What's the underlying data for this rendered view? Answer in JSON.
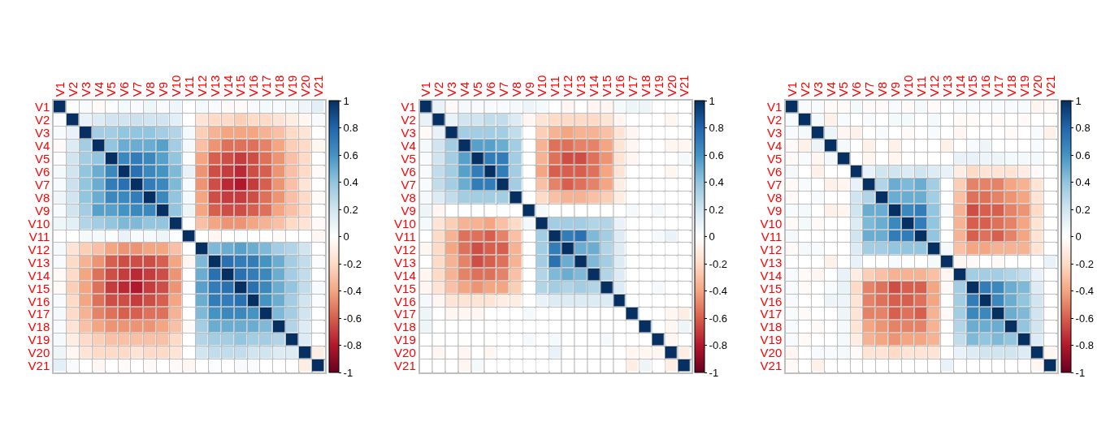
{
  "chart_data": [
    {
      "type": "heatmap",
      "categories": [
        "V1",
        "V2",
        "V3",
        "V4",
        "V5",
        "V6",
        "V7",
        "V8",
        "V9",
        "V10",
        "V11",
        "V12",
        "V13",
        "V14",
        "V15",
        "V16",
        "V17",
        "V18",
        "V19",
        "V20",
        "V21"
      ],
      "y_categories": [
        "V1",
        "V2",
        "V3",
        "V4",
        "V5",
        "V6",
        "V7",
        "V8",
        "V9",
        "V10",
        "V11",
        "V12",
        "V13",
        "V14",
        "V15",
        "V16",
        "V17",
        "V18",
        "V19",
        "V20",
        "V21"
      ],
      "cells": [
        [
          1,
          0.02,
          0.03,
          -0.03,
          0.02,
          0.05,
          0.03,
          0.07,
          0.03,
          0.07,
          0,
          0.05,
          0.03,
          -0.03,
          -0.03,
          0.03,
          0.05,
          0.03,
          0.05,
          0.08,
          0.12
        ],
        [
          0.02,
          1,
          0.1,
          0.15,
          0.2,
          0.2,
          0.22,
          0.2,
          0.2,
          0.12,
          0,
          -0.15,
          -0.2,
          -0.2,
          -0.25,
          -0.2,
          -0.2,
          -0.15,
          -0.1,
          -0.05,
          0.03
        ],
        [
          0.03,
          0.1,
          1,
          0.35,
          0.35,
          0.4,
          0.4,
          0.4,
          0.35,
          0.3,
          0.05,
          -0.25,
          -0.35,
          -0.4,
          -0.4,
          -0.4,
          -0.35,
          -0.3,
          -0.2,
          -0.15,
          0
        ],
        [
          -0.03,
          0.15,
          0.35,
          1,
          0.4,
          0.5,
          0.5,
          0.5,
          0.55,
          0.35,
          0.05,
          -0.3,
          -0.45,
          -0.55,
          -0.55,
          -0.55,
          -0.5,
          -0.4,
          -0.25,
          -0.2,
          -0.05
        ],
        [
          0.02,
          0.2,
          0.35,
          0.4,
          1,
          0.65,
          0.7,
          0.65,
          0.55,
          0.4,
          0.02,
          -0.4,
          -0.6,
          -0.65,
          -0.7,
          -0.65,
          -0.55,
          -0.45,
          -0.3,
          -0.2,
          0
        ],
        [
          0.05,
          0.2,
          0.4,
          0.5,
          0.65,
          1,
          0.75,
          0.65,
          0.6,
          0.45,
          0.1,
          -0.45,
          -0.65,
          -0.7,
          -0.75,
          -0.65,
          -0.6,
          -0.45,
          -0.3,
          -0.2,
          -0.03
        ],
        [
          0.03,
          0.22,
          0.4,
          0.5,
          0.7,
          0.75,
          1,
          0.7,
          0.65,
          0.45,
          0.03,
          -0.45,
          -0.65,
          -0.75,
          -0.8,
          -0.7,
          -0.6,
          -0.45,
          -0.3,
          -0.15,
          0
        ],
        [
          0.07,
          0.2,
          0.4,
          0.5,
          0.65,
          0.65,
          0.7,
          1,
          0.65,
          0.4,
          0.05,
          -0.4,
          -0.65,
          -0.7,
          -0.7,
          -0.65,
          -0.55,
          -0.45,
          -0.3,
          -0.2,
          -0.03
        ],
        [
          0.03,
          0.2,
          0.35,
          0.55,
          0.55,
          0.6,
          0.65,
          0.65,
          1,
          0.4,
          0.08,
          -0.4,
          -0.6,
          -0.65,
          -0.65,
          -0.6,
          -0.55,
          -0.4,
          -0.3,
          -0.2,
          0
        ],
        [
          0.07,
          0.12,
          0.3,
          0.35,
          0.4,
          0.45,
          0.45,
          0.4,
          0.4,
          1,
          0.02,
          -0.3,
          -0.4,
          -0.45,
          -0.45,
          -0.4,
          -0.35,
          -0.3,
          -0.2,
          -0.15,
          -0.03
        ],
        [
          0,
          0,
          0.05,
          0.05,
          0.02,
          0.1,
          0.03,
          0.05,
          0.08,
          0.02,
          1,
          0,
          -0.05,
          0,
          0.02,
          0,
          0,
          -0.03,
          0,
          0,
          -0.05
        ],
        [
          0.05,
          -0.15,
          -0.25,
          -0.3,
          -0.4,
          -0.45,
          -0.45,
          -0.4,
          -0.4,
          -0.3,
          0,
          1,
          0.45,
          0.5,
          0.55,
          0.5,
          0.45,
          0.35,
          0.3,
          0.2,
          0
        ],
        [
          0.03,
          -0.2,
          -0.35,
          -0.45,
          -0.6,
          -0.65,
          -0.65,
          -0.65,
          -0.6,
          -0.4,
          -0.05,
          0.45,
          1,
          0.75,
          0.7,
          0.7,
          0.6,
          0.5,
          0.35,
          0.25,
          0.02
        ],
        [
          -0.03,
          -0.2,
          -0.4,
          -0.55,
          -0.65,
          -0.7,
          -0.75,
          -0.7,
          -0.65,
          -0.45,
          0,
          0.5,
          0.75,
          1,
          0.75,
          0.7,
          0.65,
          0.5,
          0.35,
          0.25,
          0
        ],
        [
          -0.03,
          -0.25,
          -0.4,
          -0.55,
          -0.7,
          -0.75,
          -0.8,
          -0.7,
          -0.65,
          -0.45,
          0.02,
          0.55,
          0.7,
          0.75,
          1,
          0.75,
          0.65,
          0.5,
          0.4,
          0.25,
          0.03
        ],
        [
          0.03,
          -0.2,
          -0.4,
          -0.55,
          -0.65,
          -0.65,
          -0.7,
          -0.65,
          -0.6,
          -0.4,
          0,
          0.5,
          0.7,
          0.7,
          0.75,
          1,
          0.6,
          0.5,
          0.35,
          0.2,
          0.02
        ],
        [
          0.05,
          -0.2,
          -0.35,
          -0.5,
          -0.55,
          -0.6,
          -0.6,
          -0.55,
          -0.55,
          -0.35,
          0,
          0.45,
          0.6,
          0.65,
          0.65,
          0.6,
          1,
          0.45,
          0.35,
          0.2,
          0
        ],
        [
          0.03,
          -0.15,
          -0.3,
          -0.4,
          -0.45,
          -0.45,
          -0.45,
          -0.45,
          -0.4,
          -0.3,
          -0.03,
          0.35,
          0.5,
          0.5,
          0.5,
          0.5,
          0.45,
          1,
          0.3,
          0.15,
          0
        ],
        [
          0.05,
          -0.1,
          -0.2,
          -0.25,
          -0.3,
          -0.3,
          -0.3,
          -0.3,
          -0.3,
          -0.2,
          0,
          0.3,
          0.35,
          0.35,
          0.4,
          0.35,
          0.35,
          0.3,
          1,
          0.15,
          0
        ],
        [
          0.08,
          -0.05,
          -0.15,
          -0.2,
          -0.2,
          -0.2,
          -0.15,
          -0.2,
          -0.2,
          -0.15,
          0,
          0.2,
          0.25,
          0.25,
          0.25,
          0.2,
          0.2,
          0.15,
          0.15,
          1,
          -0.1
        ],
        [
          0.12,
          0.03,
          0,
          -0.05,
          0,
          -0.03,
          0,
          -0.03,
          0,
          -0.03,
          -0.05,
          0,
          0.02,
          0,
          0.03,
          0.02,
          0,
          0,
          0,
          -0.1,
          1
        ]
      ],
      "clim": [
        -1,
        1
      ],
      "cticks": [
        -1,
        -0.8,
        -0.6,
        -0.4,
        -0.2,
        0,
        0.2,
        0.4,
        0.6,
        0.8,
        1
      ],
      "grid": true
    },
    {
      "type": "heatmap",
      "categories": [
        "V1",
        "V2",
        "V3",
        "V4",
        "V5",
        "V6",
        "V7",
        "V8",
        "V9",
        "V10",
        "V11",
        "V12",
        "V13",
        "V14",
        "V15",
        "V16",
        "V17",
        "V18",
        "V19",
        "V20",
        "V21"
      ],
      "y_categories": [
        "V1",
        "V2",
        "V3",
        "V4",
        "V5",
        "V6",
        "V7",
        "V8",
        "V9",
        "V10",
        "V11",
        "V12",
        "V13",
        "V14",
        "V15",
        "V16",
        "V17",
        "V18",
        "V19",
        "V20",
        "V21"
      ],
      "cells": [
        [
          1,
          0.1,
          -0.03,
          0.05,
          0.03,
          0.03,
          0.03,
          0.05,
          0.08,
          0.05,
          0,
          -0.05,
          0,
          -0.05,
          -0.05,
          0.05,
          0.08,
          0.08,
          0,
          0,
          0
        ],
        [
          0.1,
          1,
          0.1,
          0.2,
          0.2,
          0.25,
          0.25,
          0.15,
          -0.05,
          -0.15,
          -0.2,
          -0.2,
          -0.2,
          -0.2,
          -0.15,
          -0.05,
          0,
          0,
          0,
          -0.05,
          0
        ],
        [
          -0.03,
          0.1,
          1,
          0.35,
          0.35,
          0.35,
          0.35,
          0.25,
          0,
          -0.25,
          -0.35,
          -0.4,
          -0.35,
          -0.35,
          -0.3,
          -0.15,
          -0.05,
          0,
          0,
          0,
          0
        ],
        [
          0.05,
          0.2,
          0.35,
          1,
          0.55,
          0.55,
          0.5,
          0.35,
          0,
          -0.35,
          -0.55,
          -0.55,
          -0.5,
          -0.5,
          -0.4,
          -0.15,
          -0.05,
          0,
          0,
          -0.05,
          -0.05
        ],
        [
          0.03,
          0.2,
          0.35,
          0.55,
          1,
          0.7,
          0.7,
          0.35,
          0,
          -0.35,
          -0.55,
          -0.65,
          -0.65,
          -0.55,
          -0.45,
          -0.15,
          -0.05,
          0,
          0,
          0,
          0.05
        ],
        [
          0.03,
          0.25,
          0.35,
          0.55,
          0.7,
          1,
          0.7,
          0.35,
          0,
          -0.4,
          -0.6,
          -0.6,
          -0.6,
          -0.55,
          -0.4,
          -0.15,
          0,
          0,
          0,
          -0.05,
          0
        ],
        [
          0.03,
          0.25,
          0.35,
          0.5,
          0.7,
          0.7,
          1,
          0.35,
          0,
          -0.3,
          -0.5,
          -0.6,
          -0.55,
          -0.5,
          -0.4,
          -0.1,
          0,
          0,
          0,
          0,
          0
        ],
        [
          0.05,
          0.15,
          0.25,
          0.35,
          0.35,
          0.35,
          0.35,
          1,
          0,
          -0.2,
          -0.3,
          -0.35,
          -0.35,
          -0.3,
          -0.25,
          -0.1,
          0,
          0,
          0,
          0,
          0
        ],
        [
          0.08,
          -0.05,
          0,
          0,
          0,
          0,
          0,
          0,
          1,
          0.05,
          0,
          0,
          0,
          0,
          0,
          0,
          0.05,
          0,
          0.05,
          0,
          0
        ],
        [
          0.05,
          -0.15,
          -0.25,
          -0.35,
          -0.35,
          -0.4,
          -0.3,
          -0.2,
          0.05,
          1,
          0.35,
          0.35,
          0.35,
          0.3,
          0.3,
          0.1,
          0,
          0,
          0,
          0,
          0
        ],
        [
          0,
          -0.2,
          -0.35,
          -0.55,
          -0.55,
          -0.6,
          -0.5,
          -0.3,
          0,
          0.35,
          1,
          0.7,
          0.75,
          0.45,
          0.35,
          0.15,
          0,
          0,
          0.05,
          0.1,
          0
        ],
        [
          -0.05,
          -0.2,
          -0.4,
          -0.55,
          -0.65,
          -0.6,
          -0.6,
          -0.35,
          0,
          0.35,
          0.7,
          1,
          0.5,
          0.5,
          0.3,
          0.15,
          0,
          0,
          0,
          0,
          0
        ],
        [
          0,
          -0.2,
          -0.35,
          -0.5,
          -0.65,
          -0.6,
          -0.55,
          -0.35,
          0,
          0.35,
          0.75,
          0.5,
          1,
          0.45,
          0.35,
          0.15,
          0,
          0,
          0,
          0,
          0
        ],
        [
          -0.05,
          -0.2,
          -0.35,
          -0.5,
          -0.55,
          -0.55,
          -0.5,
          -0.3,
          0,
          0.3,
          0.45,
          0.5,
          0.45,
          1,
          0.3,
          0.15,
          0,
          0,
          0,
          0,
          0
        ],
        [
          -0.05,
          -0.15,
          -0.3,
          -0.4,
          -0.45,
          -0.4,
          -0.4,
          -0.25,
          0,
          0.3,
          0.35,
          0.3,
          0.35,
          0.3,
          1,
          0.15,
          0,
          0,
          0.05,
          0,
          0
        ],
        [
          0.05,
          -0.05,
          -0.15,
          -0.15,
          -0.15,
          -0.15,
          -0.1,
          -0.1,
          0,
          0.1,
          0.15,
          0.15,
          0.15,
          0.15,
          0.15,
          1,
          0,
          0,
          0,
          0,
          0
        ],
        [
          0.08,
          0,
          -0.05,
          -0.05,
          -0.05,
          0,
          0,
          0,
          0.05,
          0,
          0,
          0,
          0,
          0,
          0,
          0,
          1,
          0,
          0,
          -0.05,
          -0.1
        ],
        [
          0.08,
          0,
          0,
          0,
          0,
          0,
          0,
          0,
          0,
          0,
          0,
          0,
          0,
          0,
          0,
          0,
          0,
          1,
          0,
          -0.05,
          0.08
        ],
        [
          0,
          0,
          0,
          0,
          0,
          0,
          0,
          0,
          0.05,
          0,
          0.05,
          0,
          0,
          0,
          0.05,
          0,
          0,
          0,
          1,
          -0.05,
          0
        ],
        [
          0,
          -0.05,
          0,
          -0.05,
          0,
          -0.05,
          0,
          0,
          0,
          0,
          0.1,
          0,
          0,
          0,
          0,
          0,
          -0.05,
          -0.05,
          -0.05,
          1,
          -0.1
        ],
        [
          0,
          0,
          0,
          -0.05,
          0.05,
          0,
          0,
          0,
          0,
          0,
          0,
          0,
          0,
          0,
          0,
          0,
          -0.1,
          0.08,
          0,
          -0.1,
          1
        ]
      ],
      "clim": [
        -1,
        1
      ],
      "cticks": [
        -1,
        -0.8,
        -0.6,
        -0.4,
        -0.2,
        0,
        0.2,
        0.4,
        0.6,
        0.8,
        1
      ],
      "grid": true
    },
    {
      "type": "heatmap",
      "categories": [
        "V1",
        "V2",
        "V3",
        "V4",
        "V5",
        "V6",
        "V7",
        "V8",
        "V9",
        "V10",
        "V11",
        "V12",
        "V13",
        "V14",
        "V15",
        "V16",
        "V17",
        "V18",
        "V19",
        "V20",
        "V21"
      ],
      "y_categories": [
        "V1",
        "V2",
        "V3",
        "V4",
        "V5",
        "V6",
        "V7",
        "V8",
        "V9",
        "V10",
        "V11",
        "V12",
        "V13",
        "V14",
        "V15",
        "V16",
        "V17",
        "V18",
        "V19",
        "V20",
        "V21"
      ],
      "cells": [
        [
          1,
          0.03,
          0.03,
          -0.03,
          -0.03,
          0.05,
          -0.03,
          -0.03,
          0.03,
          -0.03,
          0.05,
          -0.03,
          0,
          0.03,
          0.03,
          0.03,
          0.03,
          0.03,
          0.03,
          -0.05,
          -0.03
        ],
        [
          0.03,
          1,
          0.05,
          -0.08,
          0.03,
          0,
          0.03,
          0,
          0.05,
          0.05,
          0,
          0.05,
          0,
          -0.03,
          -0.03,
          0,
          -0.03,
          0,
          -0.03,
          0,
          0
        ],
        [
          0.03,
          0.05,
          1,
          0.08,
          -0.05,
          -0.08,
          0,
          0.03,
          0,
          -0.03,
          0,
          0.03,
          0,
          -0.05,
          0,
          0,
          0,
          -0.03,
          0,
          0.03,
          -0.08
        ],
        [
          -0.03,
          -0.08,
          0.08,
          1,
          0.05,
          0,
          -0.08,
          0,
          -0.08,
          0,
          0,
          0,
          -0.08,
          0,
          0.03,
          0.08,
          0,
          0,
          0,
          0.03,
          0
        ],
        [
          -0.03,
          0.03,
          -0.05,
          0.05,
          1,
          0,
          -0.05,
          0,
          -0.05,
          0,
          0,
          0,
          0,
          0.1,
          0.1,
          0.08,
          0.08,
          0.05,
          0.05,
          0.05,
          0
        ],
        [
          0.05,
          0,
          -0.08,
          0,
          0,
          1,
          0.1,
          0.2,
          0.2,
          0.15,
          0.2,
          0.15,
          0.1,
          -0.1,
          -0.2,
          -0.15,
          -0.15,
          -0.15,
          -0.1,
          -0.03,
          0
        ],
        [
          -0.03,
          0.03,
          0,
          -0.08,
          -0.05,
          0.1,
          1,
          0.3,
          0.5,
          0.45,
          0.5,
          0.35,
          0,
          -0.25,
          -0.5,
          -0.5,
          -0.5,
          -0.4,
          -0.35,
          -0.15,
          0
        ],
        [
          -0.03,
          0,
          0.03,
          0,
          0,
          0.2,
          0.3,
          1,
          0.5,
          0.5,
          0.5,
          0.35,
          0,
          -0.3,
          -0.55,
          -0.55,
          -0.5,
          -0.45,
          -0.4,
          -0.15,
          0
        ],
        [
          0.03,
          0.05,
          0,
          -0.08,
          -0.05,
          0.2,
          0.5,
          0.5,
          1,
          0.65,
          0.7,
          0.4,
          0.03,
          -0.35,
          -0.65,
          -0.6,
          -0.6,
          -0.5,
          -0.45,
          -0.2,
          0
        ],
        [
          -0.03,
          0.05,
          -0.03,
          0,
          0,
          0.15,
          0.45,
          0.5,
          0.65,
          1,
          0.7,
          0.4,
          0,
          -0.35,
          -0.6,
          -0.6,
          -0.55,
          -0.5,
          -0.4,
          -0.15,
          0
        ],
        [
          0.05,
          0,
          0,
          0,
          0,
          0.2,
          0.5,
          0.5,
          0.7,
          0.7,
          1,
          0.4,
          0,
          -0.35,
          -0.6,
          -0.55,
          -0.6,
          -0.5,
          -0.4,
          -0.15,
          0
        ],
        [
          -0.03,
          0.05,
          0.03,
          0,
          0,
          0.15,
          0.35,
          0.35,
          0.4,
          0.4,
          0.4,
          1,
          0.05,
          -0.3,
          -0.4,
          -0.4,
          -0.35,
          -0.35,
          -0.35,
          -0.15,
          0
        ],
        [
          0,
          0,
          0,
          -0.08,
          0,
          0.1,
          0,
          0,
          0.03,
          0,
          0,
          0.05,
          1,
          -0.05,
          -0.03,
          0,
          -0.03,
          0,
          0,
          0,
          0.1
        ],
        [
          0.03,
          -0.03,
          -0.05,
          0,
          0.1,
          -0.1,
          -0.25,
          -0.3,
          -0.35,
          -0.35,
          -0.35,
          -0.3,
          -0.05,
          1,
          0.35,
          0.35,
          0.35,
          0.3,
          0.25,
          0.1,
          0
        ],
        [
          0.03,
          -0.03,
          0,
          0.03,
          0.1,
          -0.2,
          -0.5,
          -0.55,
          -0.65,
          -0.6,
          -0.6,
          -0.4,
          -0.03,
          0.35,
          1,
          0.7,
          0.65,
          0.5,
          0.45,
          0.15,
          0
        ],
        [
          0.03,
          0,
          0,
          0.08,
          0.08,
          -0.15,
          -0.5,
          -0.55,
          -0.6,
          -0.6,
          -0.55,
          -0.4,
          0,
          0.35,
          0.7,
          1,
          0.65,
          0.5,
          0.4,
          0.2,
          0
        ],
        [
          0.03,
          -0.03,
          0,
          0,
          0.08,
          -0.15,
          -0.5,
          -0.5,
          -0.6,
          -0.55,
          -0.6,
          -0.35,
          -0.03,
          0.35,
          0.65,
          0.65,
          1,
          0.5,
          0.45,
          0.2,
          0
        ],
        [
          0.03,
          0,
          -0.03,
          0,
          0.05,
          -0.15,
          -0.4,
          -0.45,
          -0.5,
          -0.5,
          -0.5,
          -0.35,
          0,
          0.3,
          0.5,
          0.5,
          0.5,
          1,
          0.4,
          0.2,
          0
        ],
        [
          0.03,
          -0.03,
          0,
          0,
          0.05,
          -0.1,
          -0.35,
          -0.4,
          -0.45,
          -0.4,
          -0.4,
          -0.35,
          0,
          0.25,
          0.45,
          0.4,
          0.45,
          0.4,
          1,
          0.15,
          0
        ],
        [
          -0.05,
          0,
          0.03,
          0.03,
          0.05,
          -0.03,
          -0.15,
          -0.15,
          -0.2,
          -0.15,
          -0.15,
          -0.15,
          0,
          0.1,
          0.15,
          0.2,
          0.2,
          0.2,
          0.15,
          1,
          -0.05
        ],
        [
          -0.03,
          0,
          -0.08,
          0,
          0,
          0,
          0,
          0,
          0,
          0,
          0,
          0,
          0.1,
          0,
          0,
          0,
          0,
          0,
          0,
          -0.05,
          1
        ]
      ],
      "clim": [
        -1,
        1
      ],
      "cticks": [
        -1,
        -0.8,
        -0.6,
        -0.4,
        -0.2,
        0,
        0.2,
        0.4,
        0.6,
        0.8,
        1
      ],
      "grid": true
    }
  ]
}
